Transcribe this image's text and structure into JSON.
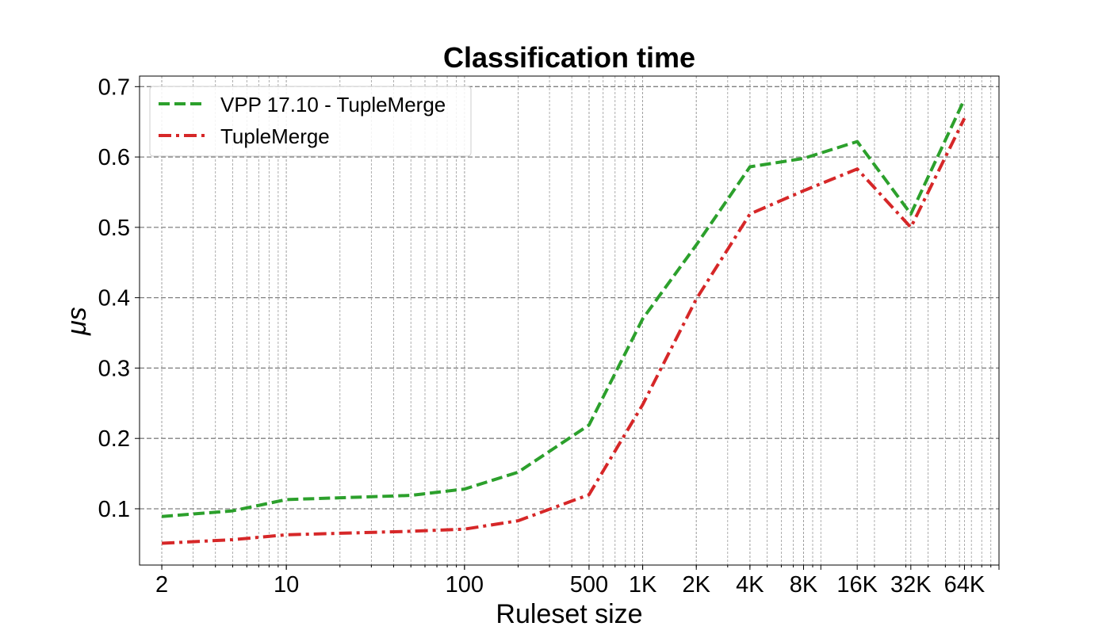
{
  "chart_data": {
    "type": "line",
    "title": "Classification time",
    "xlabel": "Ruleset size",
    "ylabel": "μs",
    "x_scale": "log",
    "xlim": [
      1.5,
      100000
    ],
    "ylim": [
      0.02,
      0.715
    ],
    "grid": true,
    "legend_position": "upper-left",
    "x_ticks": [
      {
        "value": 2,
        "label": "2"
      },
      {
        "value": 10,
        "label": "10"
      },
      {
        "value": 100,
        "label": "100"
      },
      {
        "value": 500,
        "label": "500"
      },
      {
        "value": 1000,
        "label": "1K"
      },
      {
        "value": 2000,
        "label": "2K"
      },
      {
        "value": 4000,
        "label": "4K"
      },
      {
        "value": 8000,
        "label": "8K"
      },
      {
        "value": 16000,
        "label": "16K"
      },
      {
        "value": 32000,
        "label": "32K"
      },
      {
        "value": 64000,
        "label": "64K"
      }
    ],
    "y_ticks": [
      {
        "value": 0.1,
        "label": "0.1"
      },
      {
        "value": 0.2,
        "label": "0.2"
      },
      {
        "value": 0.3,
        "label": "0.3"
      },
      {
        "value": 0.4,
        "label": "0.4"
      },
      {
        "value": 0.5,
        "label": "0.5"
      },
      {
        "value": 0.6,
        "label": "0.6"
      },
      {
        "value": 0.7,
        "label": "0.7"
      }
    ],
    "series": [
      {
        "name": "VPP 17.10 - TupleMerge",
        "color": "#2ca02c",
        "style": "dashed",
        "x": [
          2,
          5,
          10,
          50,
          100,
          200,
          500,
          1000,
          2000,
          4000,
          8000,
          16000,
          32000,
          64000
        ],
        "y": [
          0.089,
          0.097,
          0.113,
          0.119,
          0.128,
          0.152,
          0.219,
          0.37,
          0.475,
          0.586,
          0.598,
          0.622,
          0.519,
          0.682
        ]
      },
      {
        "name": "TupleMerge",
        "color": "#d62728",
        "style": "dashdot",
        "x": [
          2,
          5,
          10,
          50,
          100,
          200,
          500,
          1000,
          2000,
          4000,
          8000,
          16000,
          32000,
          64000
        ],
        "y": [
          0.051,
          0.056,
          0.063,
          0.068,
          0.071,
          0.083,
          0.12,
          0.248,
          0.398,
          0.519,
          0.552,
          0.583,
          0.5,
          0.655
        ]
      }
    ]
  }
}
